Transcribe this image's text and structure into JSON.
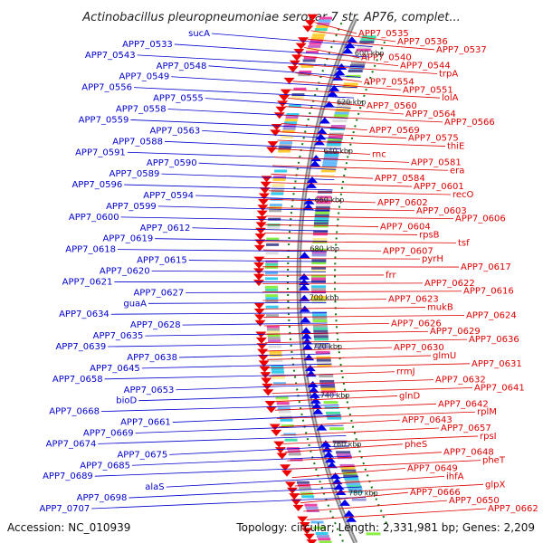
{
  "title": "Actinobacillus pleuropneumoniae serovar 7 str. AP76, complet...",
  "footer": {
    "accession": "Accession: NC_010939",
    "summary": "Topology: circular; Length: 2,331,981 bp; Genes: 2,209"
  },
  "colors": {
    "plus_label": "#0000cc",
    "minus_label": "#dd0000",
    "plus_arrow": "#0000ee",
    "minus_arrow": "#ee0000",
    "backbone": "#888888",
    "ticks": "#117711"
  },
  "scale_labels": [
    "600 kbp",
    "620 kbp",
    "640 kbp",
    "660 kbp",
    "680 kbp",
    "700 kbp",
    "720 kbp",
    "740 kbp",
    "760 kbp",
    "780 kbp"
  ],
  "left_labels": [
    "sucA",
    "APP7_0533",
    "APP7_0543",
    "APP7_0548",
    "APP7_0549",
    "APP7_0556",
    "APP7_0555",
    "APP7_0558",
    "APP7_0559",
    "APP7_0563",
    "APP7_0588",
    "APP7_0591",
    "APP7_0590",
    "APP7_0589",
    "APP7_0596",
    "APP7_0594",
    "APP7_0599",
    "APP7_0600",
    "APP7_0612",
    "APP7_0619",
    "APP7_0618",
    "APP7_0615",
    "APP7_0620",
    "APP7_0621",
    "APP7_0627",
    "guaA",
    "APP7_0634",
    "APP7_0628",
    "APP7_0635",
    "APP7_0639",
    "APP7_0638",
    "APP7_0645",
    "APP7_0658",
    "APP7_0653",
    "bioD",
    "APP7_0668",
    "APP7_0661",
    "APP7_0669",
    "APP7_0674",
    "APP7_0675",
    "APP7_0685",
    "APP7_0689",
    "alaS",
    "APP7_0698",
    "APP7_0707"
  ],
  "right_labels": [
    "APP7_0535",
    "APP7_0536",
    "APP7_0537",
    "APP7_0540",
    "APP7_0544",
    "trpA",
    "APP7_0554",
    "APP7_0551",
    "lolA",
    "APP7_0560",
    "APP7_0564",
    "APP7_0566",
    "APP7_0569",
    "APP7_0575",
    "thiE",
    "rnc",
    "APP7_0581",
    "era",
    "APP7_0584",
    "APP7_0601",
    "recO",
    "APP7_0602",
    "APP7_0603",
    "APP7_0606",
    "APP7_0604",
    "rpsB",
    "tsf",
    "APP7_0607",
    "pyrH",
    "APP7_0617",
    "frr",
    "APP7_0622",
    "APP7_0616",
    "APP7_0623",
    "mukB",
    "APP7_0624",
    "APP7_0626",
    "APP7_0629",
    "APP7_0636",
    "APP7_0630",
    "glmU",
    "APP7_0631",
    "rrmJ",
    "APP7_0632",
    "APP7_0641",
    "glnD",
    "APP7_0642",
    "rplM",
    "APP7_0643",
    "APP7_0657",
    "rpsI",
    "pheS",
    "APP7_0648",
    "pheT",
    "APP7_0649",
    "ihfA",
    "glpX",
    "APP7_0666",
    "APP7_0650",
    "APP7_0662"
  ]
}
